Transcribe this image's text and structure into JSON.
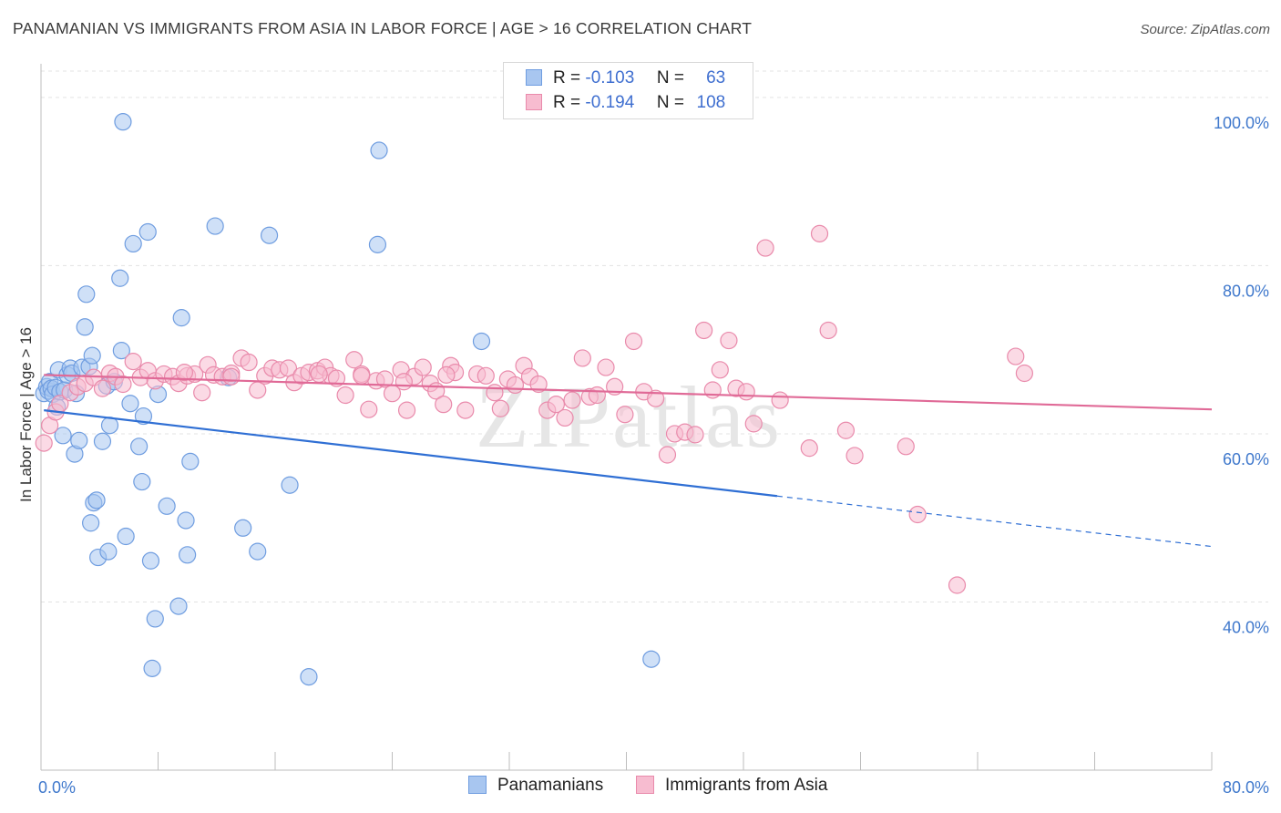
{
  "title": "PANAMANIAN VS IMMIGRANTS FROM ASIA IN LABOR FORCE | AGE > 16 CORRELATION CHART",
  "source": "Source: ZipAtlas.com",
  "watermark": "ZIPatlas",
  "legend": {
    "r_label": "R =",
    "n_label": "N =",
    "rows": [
      {
        "r": "-0.103",
        "n": "63",
        "color": "#a8c6f0",
        "border": "#6f9de0"
      },
      {
        "r": "-0.194",
        "n": "108",
        "color": "#f7bcd0",
        "border": "#e98aab"
      }
    ]
  },
  "bottom_legend": [
    {
      "label": "Panamanians",
      "color": "#a8c6f0",
      "border": "#6f9de0"
    },
    {
      "label": "Immigrants from Asia",
      "color": "#f7bcd0",
      "border": "#e98aab"
    }
  ],
  "chart_data": {
    "type": "scatter",
    "title": "PANAMANIAN VS IMMIGRANTS FROM ASIA IN LABOR FORCE | AGE > 16 CORRELATION CHART",
    "xlabel": "",
    "ylabel": "In Labor Force | Age > 16",
    "xlim": [
      0,
      80
    ],
    "ylim": [
      20,
      104
    ],
    "x_tick_labels": [
      "0.0%",
      "80.0%"
    ],
    "y_ticks": [
      {
        "value": 100,
        "label": "100.0%"
      },
      {
        "value": 80,
        "label": "80.0%"
      },
      {
        "value": 60,
        "label": "60.0%"
      },
      {
        "value": 40,
        "label": "40.0%"
      }
    ],
    "series": [
      {
        "name": "Panamanians",
        "color": "#a8c6f0",
        "stroke": "#6f9de0",
        "line_color": "#2f6fd4",
        "trend": {
          "x0": 0.2,
          "y0": 62.8,
          "x1": 50.3,
          "y1": 52.6,
          "dash_to_x": 80,
          "dash_to_y": 46.6
        },
        "points": [
          [
            0.2,
            64.8
          ],
          [
            0.4,
            65.6
          ],
          [
            0.5,
            65.1
          ],
          [
            0.6,
            66.2
          ],
          [
            0.7,
            65.4
          ],
          [
            0.8,
            64.7
          ],
          [
            1.0,
            65.5
          ],
          [
            1.1,
            63.2
          ],
          [
            1.2,
            67.6
          ],
          [
            1.3,
            65.0
          ],
          [
            1.5,
            59.8
          ],
          [
            1.6,
            65.2
          ],
          [
            1.8,
            67.0
          ],
          [
            2.0,
            67.8
          ],
          [
            2.1,
            67.2
          ],
          [
            2.3,
            57.6
          ],
          [
            2.4,
            64.8
          ],
          [
            2.6,
            59.2
          ],
          [
            2.8,
            67.9
          ],
          [
            3.0,
            72.7
          ],
          [
            3.1,
            76.6
          ],
          [
            3.3,
            68.0
          ],
          [
            3.4,
            49.4
          ],
          [
            3.5,
            69.3
          ],
          [
            3.6,
            51.8
          ],
          [
            3.8,
            52.1
          ],
          [
            3.9,
            45.3
          ],
          [
            4.2,
            59.1
          ],
          [
            4.5,
            65.7
          ],
          [
            4.6,
            46.0
          ],
          [
            4.7,
            61.0
          ],
          [
            5.0,
            66.2
          ],
          [
            5.4,
            78.5
          ],
          [
            5.5,
            69.9
          ],
          [
            5.6,
            97.1
          ],
          [
            5.8,
            47.8
          ],
          [
            6.1,
            63.6
          ],
          [
            6.3,
            82.6
          ],
          [
            6.7,
            58.5
          ],
          [
            6.9,
            54.3
          ],
          [
            7.0,
            62.1
          ],
          [
            7.3,
            84.0
          ],
          [
            7.5,
            44.9
          ],
          [
            7.6,
            32.1
          ],
          [
            7.8,
            38.0
          ],
          [
            8.0,
            64.7
          ],
          [
            8.6,
            51.4
          ],
          [
            9.4,
            39.5
          ],
          [
            9.6,
            73.8
          ],
          [
            9.9,
            49.7
          ],
          [
            10.0,
            45.6
          ],
          [
            10.2,
            56.7
          ],
          [
            11.9,
            84.7
          ],
          [
            12.8,
            66.7
          ],
          [
            13.8,
            48.8
          ],
          [
            14.8,
            46.0
          ],
          [
            15.6,
            83.6
          ],
          [
            17.0,
            53.9
          ],
          [
            18.3,
            31.1
          ],
          [
            23.0,
            82.5
          ],
          [
            23.1,
            93.7
          ],
          [
            30.1,
            71.0
          ],
          [
            41.7,
            33.2
          ]
        ]
      },
      {
        "name": "Immigrants from Asia",
        "color": "#f7bcd0",
        "stroke": "#e98aab",
        "line_color": "#e06a97",
        "trend": {
          "x0": 0.2,
          "y0": 67.0,
          "x1": 80,
          "y1": 62.9
        },
        "points": [
          [
            0.2,
            58.9
          ],
          [
            0.6,
            61.0
          ],
          [
            1.0,
            62.6
          ],
          [
            1.3,
            63.6
          ],
          [
            2.0,
            64.9
          ],
          [
            2.5,
            65.6
          ],
          [
            3.0,
            66.0
          ],
          [
            3.6,
            66.7
          ],
          [
            4.2,
            65.4
          ],
          [
            4.7,
            67.2
          ],
          [
            5.1,
            66.8
          ],
          [
            5.6,
            65.9
          ],
          [
            6.3,
            68.6
          ],
          [
            6.8,
            66.7
          ],
          [
            7.3,
            67.5
          ],
          [
            7.8,
            66.3
          ],
          [
            8.4,
            67.1
          ],
          [
            9.0,
            66.8
          ],
          [
            9.4,
            66.0
          ],
          [
            10.0,
            66.9
          ],
          [
            10.5,
            67.1
          ],
          [
            11.0,
            64.9
          ],
          [
            11.4,
            68.2
          ],
          [
            11.8,
            67.0
          ],
          [
            12.4,
            66.8
          ],
          [
            13.0,
            67.2
          ],
          [
            13.7,
            69.0
          ],
          [
            14.2,
            68.5
          ],
          [
            14.8,
            65.2
          ],
          [
            15.3,
            66.9
          ],
          [
            15.8,
            67.8
          ],
          [
            16.3,
            67.6
          ],
          [
            16.9,
            67.8
          ],
          [
            17.3,
            66.1
          ],
          [
            17.8,
            66.9
          ],
          [
            18.3,
            67.3
          ],
          [
            18.9,
            67.5
          ],
          [
            19.4,
            67.9
          ],
          [
            19.8,
            66.9
          ],
          [
            20.2,
            66.6
          ],
          [
            20.8,
            64.6
          ],
          [
            21.4,
            68.8
          ],
          [
            21.9,
            67.1
          ],
          [
            22.4,
            62.9
          ],
          [
            22.9,
            66.3
          ],
          [
            23.5,
            66.5
          ],
          [
            24.0,
            64.8
          ],
          [
            24.6,
            67.6
          ],
          [
            25.0,
            62.8
          ],
          [
            25.5,
            66.8
          ],
          [
            26.1,
            67.9
          ],
          [
            26.6,
            66.0
          ],
          [
            27.0,
            65.1
          ],
          [
            27.5,
            63.5
          ],
          [
            28.0,
            68.1
          ],
          [
            28.3,
            67.3
          ],
          [
            29.0,
            62.8
          ],
          [
            29.8,
            67.1
          ],
          [
            30.4,
            66.9
          ],
          [
            31.0,
            64.9
          ],
          [
            31.4,
            63.0
          ],
          [
            31.9,
            66.5
          ],
          [
            32.4,
            65.8
          ],
          [
            33.0,
            68.1
          ],
          [
            33.4,
            66.8
          ],
          [
            34.0,
            65.9
          ],
          [
            34.6,
            62.8
          ],
          [
            35.2,
            63.5
          ],
          [
            35.8,
            61.9
          ],
          [
            36.3,
            64.0
          ],
          [
            37.0,
            69.0
          ],
          [
            37.5,
            64.4
          ],
          [
            38.0,
            64.6
          ],
          [
            38.6,
            67.9
          ],
          [
            39.2,
            65.6
          ],
          [
            39.9,
            62.3
          ],
          [
            40.5,
            71.0
          ],
          [
            41.2,
            65.0
          ],
          [
            42.0,
            64.2
          ],
          [
            42.8,
            57.5
          ],
          [
            43.3,
            60.0
          ],
          [
            44.0,
            60.2
          ],
          [
            44.7,
            59.9
          ],
          [
            45.3,
            72.3
          ],
          [
            45.9,
            65.2
          ],
          [
            46.4,
            67.6
          ],
          [
            47.0,
            71.1
          ],
          [
            47.5,
            65.4
          ],
          [
            48.2,
            65.0
          ],
          [
            48.7,
            61.2
          ],
          [
            49.5,
            82.1
          ],
          [
            50.5,
            64.0
          ],
          [
            52.5,
            58.3
          ],
          [
            53.2,
            83.8
          ],
          [
            53.8,
            72.3
          ],
          [
            55.0,
            60.4
          ],
          [
            55.6,
            57.4
          ],
          [
            59.1,
            58.5
          ],
          [
            59.9,
            50.4
          ],
          [
            62.6,
            42.0
          ],
          [
            66.6,
            69.2
          ],
          [
            67.2,
            67.2
          ],
          [
            21.9,
            66.9
          ],
          [
            27.7,
            67.0
          ],
          [
            13.0,
            66.8
          ],
          [
            24.8,
            66.2
          ],
          [
            9.8,
            67.3
          ],
          [
            19.0,
            67.1
          ]
        ]
      }
    ]
  }
}
